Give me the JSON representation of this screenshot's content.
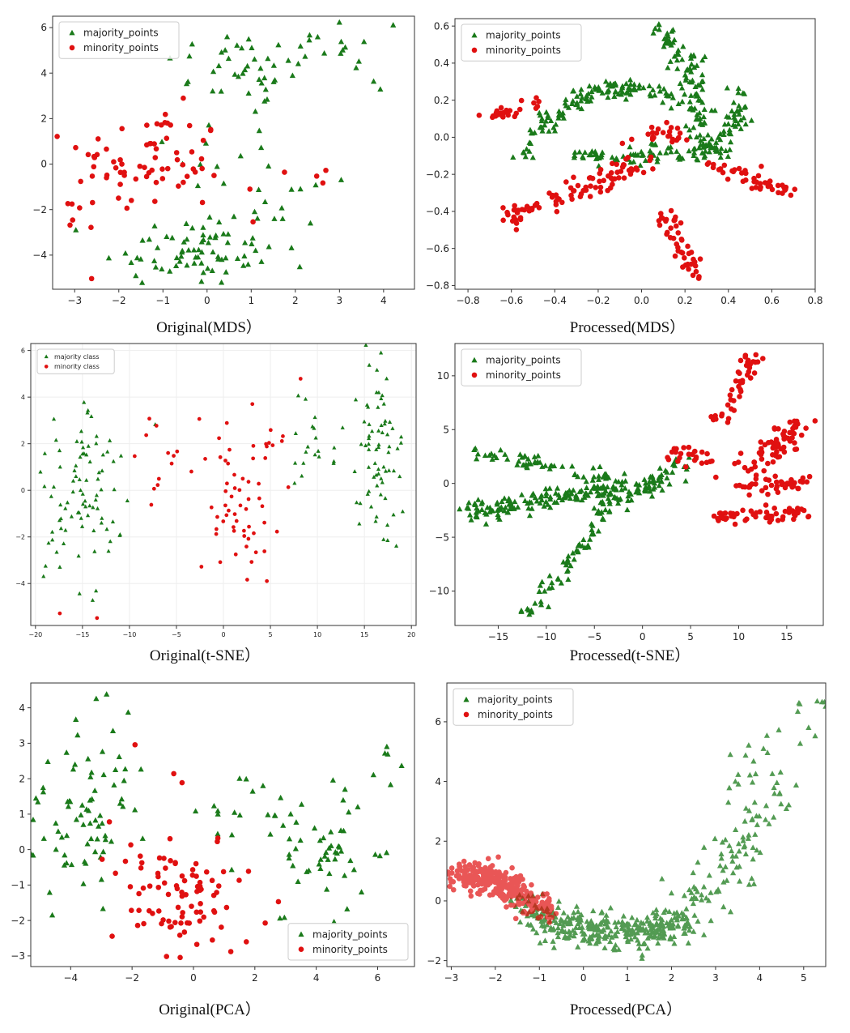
{
  "colors": {
    "majority": "#1a7a1a",
    "minority": "#e01010",
    "axis": "#333333"
  },
  "legend_labels": {
    "majority": "majority_points",
    "minority": "minority_points"
  },
  "chart_data": [
    {
      "type": "scatter",
      "caption": "Original(MDS）",
      "xlim": [
        -3.5,
        4.7
      ],
      "ylim": [
        -5.5,
        6.5
      ],
      "xticks": [
        -3,
        -2,
        -1,
        0,
        1,
        2,
        3,
        4
      ],
      "yticks": [
        -4,
        -2,
        0,
        2,
        4,
        6
      ],
      "legend": [
        "majority_points",
        "minority_points"
      ],
      "legend_position": "upper-left",
      "series": [
        {
          "name": "majority_points",
          "marker": "triangle",
          "clusters": [
            {
              "cx": 1.0,
              "cy": 4.3,
              "sx": 1.0,
              "sy": 0.9,
              "n": 45
            },
            {
              "cx": 3.8,
              "cy": 4.9,
              "sx": 0.6,
              "sy": 1.0,
              "n": 12
            },
            {
              "cx": -0.4,
              "cy": -3.8,
              "sx": 1.0,
              "sy": 0.8,
              "n": 70
            },
            {
              "cx": 1.6,
              "cy": -2.6,
              "sx": 1.0,
              "sy": 1.4,
              "n": 15
            },
            {
              "cx": 0.7,
              "cy": 0.6,
              "sx": 0.8,
              "sy": 1.3,
              "n": 15
            }
          ]
        },
        {
          "name": "minority_points",
          "marker": "circle",
          "clusters": [
            {
              "cx": -1.3,
              "cy": 0.0,
              "sx": 0.85,
              "sy": 1.2,
              "n": 70
            },
            {
              "cx": -3.1,
              "cy": -1.6,
              "sx": 0.2,
              "sy": 1.0,
              "n": 6
            },
            {
              "cx": 1.5,
              "cy": -0.6,
              "sx": 0.7,
              "sy": 1.0,
              "n": 6
            }
          ]
        }
      ]
    },
    {
      "type": "scatter",
      "caption": "Processed(MDS）",
      "xlim": [
        -0.86,
        0.8
      ],
      "ylim": [
        -0.82,
        0.64
      ],
      "xticks": [
        -0.8,
        -0.6,
        -0.4,
        -0.2,
        0.0,
        0.2,
        0.4,
        0.6,
        0.8
      ],
      "yticks": [
        -0.8,
        -0.6,
        -0.4,
        -0.2,
        0.0,
        0.2,
        0.4,
        0.6
      ],
      "legend": [
        "majority_points",
        "minority_points"
      ],
      "legend_position": "upper-left",
      "series": [
        {
          "name": "majority_points",
          "marker": "triangle",
          "arcs": [
            {
              "x0": -0.45,
              "y0": 0.05,
              "x1": -0.2,
              "y1": 0.38,
              "x2": 0.2,
              "y2": 0.2,
              "spread": 0.03,
              "n": 120
            },
            {
              "x0": 0.05,
              "y0": 0.6,
              "x1": 0.3,
              "y1": 0.4,
              "x2": 0.25,
              "y2": 0.0,
              "spread": 0.03,
              "n": 90
            },
            {
              "x0": -0.3,
              "y0": -0.1,
              "x1": 0.1,
              "y1": -0.1,
              "x2": 0.4,
              "y2": -0.05,
              "spread": 0.03,
              "n": 90
            },
            {
              "x0": 0.3,
              "y0": -0.05,
              "x1": 0.48,
              "y1": 0.05,
              "x2": 0.45,
              "y2": 0.3,
              "spread": 0.025,
              "n": 50
            },
            {
              "x0": -0.55,
              "y0": -0.15,
              "x1": -0.5,
              "y1": 0.05,
              "x2": -0.45,
              "y2": 0.15,
              "spread": 0.02,
              "n": 15
            }
          ]
        },
        {
          "name": "minority_points",
          "marker": "circle",
          "arcs": [
            {
              "x0": -0.62,
              "y0": -0.45,
              "x1": -0.3,
              "y1": -0.25,
              "x2": 0.05,
              "y2": -0.15,
              "spread": 0.04,
              "n": 90
            },
            {
              "x0": -0.7,
              "y0": 0.1,
              "x1": -0.55,
              "y1": 0.18,
              "x2": -0.42,
              "y2": 0.2,
              "spread": 0.02,
              "n": 25
            },
            {
              "x0": 0.3,
              "y0": -0.12,
              "x1": 0.5,
              "y1": -0.25,
              "x2": 0.72,
              "y2": -0.3,
              "spread": 0.025,
              "n": 45
            },
            {
              "x0": 0.1,
              "y0": -0.4,
              "x1": 0.2,
              "y1": -0.6,
              "x2": 0.25,
              "y2": -0.75,
              "spread": 0.03,
              "n": 45
            },
            {
              "x0": 0.0,
              "y0": -0.05,
              "x1": 0.1,
              "y1": 0.05,
              "x2": 0.2,
              "y2": 0.0,
              "spread": 0.04,
              "n": 25
            }
          ]
        }
      ]
    },
    {
      "type": "scatter",
      "caption": "Original(t-SNE）",
      "xlim": [
        -20.5,
        20.5
      ],
      "ylim": [
        -5.8,
        6.3
      ],
      "xticks": [
        -20,
        -15,
        -10,
        -5,
        0,
        5,
        10,
        15,
        20
      ],
      "yticks": [
        -4,
        -2,
        0,
        2,
        4,
        6
      ],
      "legend": [
        "majority class",
        "minority class"
      ],
      "legend_position": "upper-left",
      "grid": true,
      "series": [
        {
          "name": "majority class",
          "marker": "triangle",
          "clusters": [
            {
              "cx": -15,
              "cy": 0.0,
              "sx": 2.5,
              "sy": 2.0,
              "n": 90
            },
            {
              "cx": 16.5,
              "cy": 2.0,
              "sx": 1.2,
              "sy": 2.3,
              "n": 70
            },
            {
              "cx": 10,
              "cy": 1.8,
              "sx": 1.8,
              "sy": 1.0,
              "n": 20
            }
          ]
        },
        {
          "name": "minority class",
          "marker": "circle",
          "clusters": [
            {
              "cx": 2.0,
              "cy": -0.5,
              "sx": 2.5,
              "sy": 2.2,
              "n": 65
            },
            {
              "cx": -7.5,
              "cy": 1.5,
              "sx": 1.5,
              "sy": 1.2,
              "n": 12
            },
            {
              "cx": -15,
              "cy": -5.2,
              "sx": 1.5,
              "sy": 0.2,
              "n": 2
            }
          ]
        }
      ]
    },
    {
      "type": "scatter",
      "caption": "Processed(t-SNE）",
      "xlim": [
        -19.5,
        18.8
      ],
      "ylim": [
        -13.2,
        13.0
      ],
      "xticks": [
        -15,
        -10,
        -5,
        0,
        5,
        10,
        15
      ],
      "yticks": [
        -10,
        -5,
        0,
        5,
        10
      ],
      "legend": [
        "majority_points",
        "minority_points"
      ],
      "legend_position": "upper-left",
      "series": [
        {
          "name": "majority_points",
          "marker": "triangle",
          "arcs": [
            {
              "x0": -18,
              "y0": -2.7,
              "x1": -8,
              "y1": -0.8,
              "x2": 2,
              "y2": -0.2,
              "spread": 0.7,
              "n": 170
            },
            {
              "x0": -17,
              "y0": 3.0,
              "x1": -10,
              "y1": 1.5,
              "x2": -2,
              "y2": 0.2,
              "spread": 0.5,
              "n": 60
            },
            {
              "x0": -12,
              "y0": -12.2,
              "x1": -7,
              "y1": -7,
              "x2": -3,
              "y2": -1.5,
              "spread": 0.5,
              "n": 60
            },
            {
              "x0": -5,
              "y0": -2,
              "x1": 0,
              "y1": 0,
              "x2": 5,
              "y2": 2,
              "spread": 1.0,
              "n": 50
            }
          ]
        },
        {
          "name": "minority_points",
          "marker": "circle",
          "arcs": [
            {
              "x0": 8,
              "y0": 5,
              "x1": 10,
              "y1": 9,
              "x2": 11.5,
              "y2": 12,
              "spread": 0.5,
              "n": 45
            },
            {
              "x0": 11,
              "y0": 1.5,
              "x1": 14,
              "y1": 3.5,
              "x2": 16.5,
              "y2": 5.8,
              "spread": 0.8,
              "n": 70
            },
            {
              "x0": 10,
              "y0": -0.5,
              "x1": 13,
              "y1": 0.0,
              "x2": 17,
              "y2": 0.0,
              "spread": 0.6,
              "n": 45
            },
            {
              "x0": 8,
              "y0": -3.2,
              "x1": 12,
              "y1": -3.0,
              "x2": 17.5,
              "y2": -2.5,
              "spread": 0.5,
              "n": 55
            },
            {
              "x0": 3,
              "y0": 1.5,
              "x1": 5,
              "y1": 4.5,
              "x2": 7,
              "y2": 1.0,
              "spread": 0.8,
              "n": 25
            }
          ]
        }
      ]
    },
    {
      "type": "scatter",
      "caption": "Original(PCA）",
      "xlim": [
        -5.3,
        7.2
      ],
      "ylim": [
        -3.3,
        4.7
      ],
      "xticks": [
        -4,
        -2,
        0,
        2,
        4,
        6
      ],
      "yticks": [
        -3,
        -2,
        -1,
        0,
        1,
        2,
        3,
        4
      ],
      "legend": [
        "majority_points",
        "minority_points"
      ],
      "legend_position": "lower-right",
      "series": [
        {
          "name": "majority_points",
          "marker": "triangle",
          "clusters": [
            {
              "cx": -3.5,
              "cy": 0.8,
              "sx": 0.9,
              "sy": 1.2,
              "n": 75
            },
            {
              "cx": 1.8,
              "cy": 0.6,
              "sx": 1.1,
              "sy": 0.9,
              "n": 25
            },
            {
              "cx": 4.6,
              "cy": 0.2,
              "sx": 0.8,
              "sy": 1.2,
              "n": 45
            },
            {
              "cx": 6.3,
              "cy": 2.2,
              "sx": 0.3,
              "sy": 0.6,
              "n": 6
            },
            {
              "cx": -2.6,
              "cy": 4.3,
              "sx": 0.4,
              "sy": 0.1,
              "n": 2
            }
          ]
        },
        {
          "name": "minority_points",
          "marker": "circle",
          "clusters": [
            {
              "cx": -0.4,
              "cy": -1.3,
              "sx": 1.2,
              "sy": 0.8,
              "n": 90
            },
            {
              "cx": -1.2,
              "cy": 2.0,
              "sx": 1.0,
              "sy": 0.7,
              "n": 4
            }
          ]
        }
      ]
    },
    {
      "type": "scatter",
      "caption": "Processed(PCA）",
      "xlim": [
        -3.1,
        5.5
      ],
      "ylim": [
        -2.2,
        7.3
      ],
      "xticks": [
        -3,
        -2,
        -1,
        0,
        1,
        2,
        3,
        4,
        5
      ],
      "yticks": [
        -2,
        0,
        2,
        4,
        6
      ],
      "legend": [
        "majority_points",
        "minority_points"
      ],
      "legend_position": "upper-left",
      "series": [
        {
          "name": "majority_points",
          "marker": "triangle",
          "arcs": [
            {
              "x0": -1.5,
              "y0": -0.3,
              "x1": 0.5,
              "y1": -1.4,
              "x2": 2.3,
              "y2": -0.8,
              "spread": 0.3,
              "n": 330
            },
            {
              "x0": 2.3,
              "y0": -0.8,
              "x1": 3.3,
              "y1": 1.0,
              "x2": 4.4,
              "y2": 4.0,
              "spread": 0.45,
              "n": 100
            },
            {
              "x0": 3.5,
              "y0": 4.0,
              "x1": 4.3,
              "y1": 5.8,
              "x2": 5.2,
              "y2": 6.7,
              "spread": 0.4,
              "n": 25
            }
          ]
        },
        {
          "name": "minority_points",
          "marker": "circle",
          "arcs": [
            {
              "x0": -2.8,
              "y0": 0.8,
              "x1": -1.9,
              "y1": 0.9,
              "x2": -0.9,
              "y2": -0.4,
              "spread": 0.25,
              "n": 300
            }
          ]
        }
      ]
    }
  ]
}
